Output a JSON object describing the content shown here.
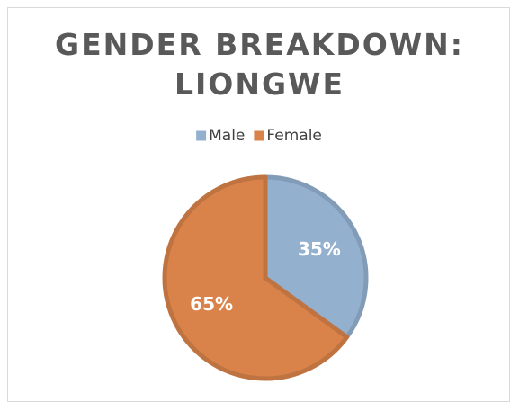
{
  "chart_data": {
    "type": "pie",
    "title": "GENDER BREAKDOWN: LIONGWE",
    "categories": [
      "Male",
      "Female"
    ],
    "values": [
      35,
      65
    ],
    "value_labels": [
      "35%",
      "65%"
    ],
    "colors": [
      "#94b0cf",
      "#d9834a"
    ],
    "legend": "top"
  }
}
